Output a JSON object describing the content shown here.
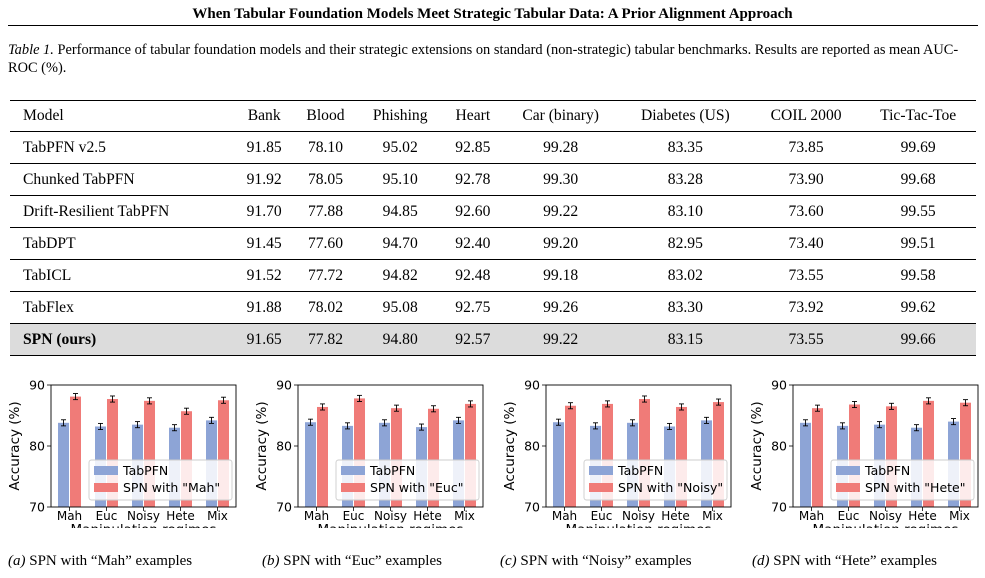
{
  "running_title": "When Tabular Foundation Models Meet Strategic Tabular Data: A Prior Alignment Approach",
  "caption": {
    "label": "Table 1.",
    "text": "Performance of tabular foundation models and their strategic extensions on standard (non-strategic) tabular benchmarks. Results are reported as mean AUC-ROC (%)."
  },
  "table": {
    "headers": [
      "Model",
      "Bank",
      "Blood",
      "Phishing",
      "Heart",
      "Car (binary)",
      "Diabetes (US)",
      "COIL 2000",
      "Tic-Tac-Toe"
    ],
    "rows": [
      [
        "TabPFN v2.5",
        "91.85",
        "78.10",
        "95.02",
        "92.85",
        "99.28",
        "83.35",
        "73.85",
        "99.69"
      ],
      [
        "Chunked TabPFN",
        "91.92",
        "78.05",
        "95.10",
        "92.78",
        "99.30",
        "83.28",
        "73.90",
        "99.68"
      ],
      [
        "Drift-Resilient TabPFN",
        "91.70",
        "77.88",
        "94.85",
        "92.60",
        "99.22",
        "83.10",
        "73.60",
        "99.55"
      ],
      [
        "TabDPT",
        "91.45",
        "77.60",
        "94.70",
        "92.40",
        "99.20",
        "82.95",
        "73.40",
        "99.51"
      ],
      [
        "TabICL",
        "91.52",
        "77.72",
        "94.82",
        "92.48",
        "99.18",
        "83.02",
        "73.55",
        "99.58"
      ],
      [
        "TabFlex",
        "91.88",
        "78.02",
        "95.08",
        "92.75",
        "99.26",
        "83.30",
        "73.92",
        "99.62"
      ],
      [
        "SPN (ours)",
        "91.65",
        "77.82",
        "94.80",
        "92.57",
        "99.22",
        "83.15",
        "73.55",
        "99.66"
      ]
    ],
    "highlight_row": 6
  },
  "colors": {
    "tabpfn": "#8da4d6",
    "spn": "#f07b78",
    "highlight": "#dcdcdc"
  },
  "chart_data": [
    {
      "type": "bar",
      "categories": [
        "Mah",
        "Euc",
        "Noisy",
        "Hete",
        "Mix"
      ],
      "xlabel": "Manipulation regimes",
      "ylabel": "Accuracy (%)",
      "ylim": [
        70,
        90
      ],
      "yticks": [
        70,
        80,
        90
      ],
      "legend_position": "lower-right",
      "grid": false,
      "series": [
        {
          "name": "TabPFN",
          "values": [
            83.8,
            83.2,
            83.5,
            83.0,
            84.2
          ],
          "errors": [
            0.5,
            0.5,
            0.5,
            0.5,
            0.5
          ]
        },
        {
          "name": "SPN with \"Mah\"",
          "values": [
            88.1,
            87.7,
            87.4,
            85.7,
            87.5
          ],
          "errors": [
            0.5,
            0.5,
            0.5,
            0.5,
            0.5
          ]
        }
      ]
    },
    {
      "type": "bar",
      "categories": [
        "Mah",
        "Euc",
        "Noisy",
        "Hete",
        "Mix"
      ],
      "xlabel": "Manipulation regimes",
      "ylabel": "Accuracy (%)",
      "ylim": [
        70,
        90
      ],
      "yticks": [
        70,
        80,
        90
      ],
      "legend_position": "lower-right",
      "grid": false,
      "series": [
        {
          "name": "TabPFN",
          "values": [
            83.9,
            83.3,
            83.8,
            83.1,
            84.2
          ],
          "errors": [
            0.5,
            0.5,
            0.5,
            0.5,
            0.5
          ]
        },
        {
          "name": "SPN with \"Euc\"",
          "values": [
            86.4,
            87.8,
            86.2,
            86.1,
            86.9
          ],
          "errors": [
            0.5,
            0.5,
            0.5,
            0.5,
            0.5
          ]
        }
      ]
    },
    {
      "type": "bar",
      "categories": [
        "Mah",
        "Euc",
        "Noisy",
        "Hete",
        "Mix"
      ],
      "xlabel": "Manipulation regimes",
      "ylabel": "Accuracy (%)",
      "ylim": [
        70,
        90
      ],
      "yticks": [
        70,
        80,
        90
      ],
      "legend_position": "lower-right",
      "grid": false,
      "series": [
        {
          "name": "TabPFN",
          "values": [
            83.9,
            83.3,
            83.8,
            83.2,
            84.2
          ],
          "errors": [
            0.5,
            0.5,
            0.5,
            0.5,
            0.5
          ]
        },
        {
          "name": "SPN with \"Noisy\"",
          "values": [
            86.6,
            86.9,
            87.7,
            86.4,
            87.2
          ],
          "errors": [
            0.5,
            0.5,
            0.5,
            0.5,
            0.5
          ]
        }
      ]
    },
    {
      "type": "bar",
      "categories": [
        "Mah",
        "Euc",
        "Noisy",
        "Hete",
        "Mix"
      ],
      "xlabel": "Manipulation regimes",
      "ylabel": "Accuracy (%)",
      "ylim": [
        70,
        90
      ],
      "yticks": [
        70,
        80,
        90
      ],
      "legend_position": "lower-right",
      "grid": false,
      "series": [
        {
          "name": "TabPFN",
          "values": [
            83.8,
            83.3,
            83.5,
            83.0,
            84.0
          ],
          "errors": [
            0.5,
            0.5,
            0.5,
            0.5,
            0.5
          ]
        },
        {
          "name": "SPN with \"Hete\"",
          "values": [
            86.2,
            86.8,
            86.5,
            87.4,
            87.1
          ],
          "errors": [
            0.5,
            0.5,
            0.5,
            0.5,
            0.5
          ]
        }
      ]
    }
  ],
  "subcaptions": [
    {
      "label": "(a)",
      "text": "SPN with “Mah” examples"
    },
    {
      "label": "(b)",
      "text": "SPN with “Euc” examples"
    },
    {
      "label": "(c)",
      "text": "SPN with “Noisy” examples"
    },
    {
      "label": "(d)",
      "text": "SPN with “Hete” examples"
    }
  ]
}
